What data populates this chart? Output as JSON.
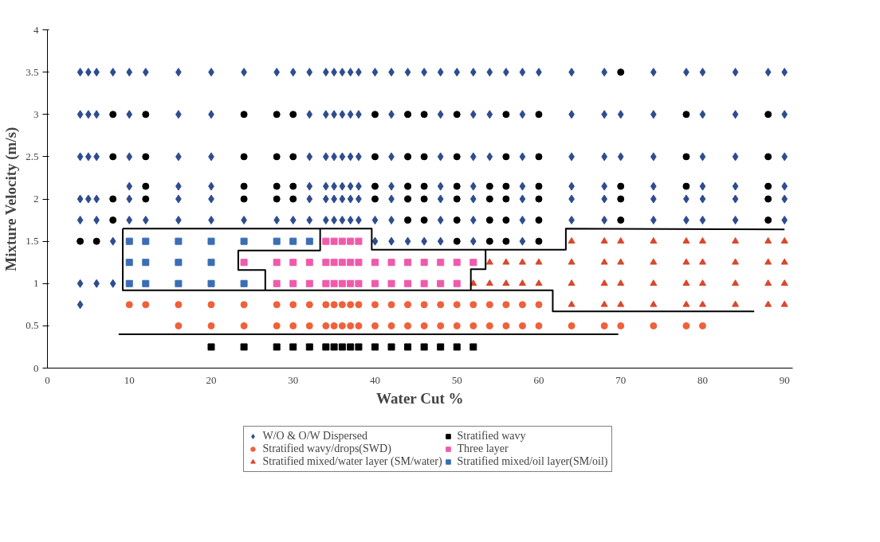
{
  "chart_data": {
    "type": "scatter",
    "xlabel": "Water Cut %",
    "ylabel": "Mixture Velocity (m/s)",
    "xlim": [
      0,
      91
    ],
    "ylim": [
      0,
      4
    ],
    "xticks": [
      0,
      10,
      20,
      30,
      40,
      50,
      60,
      70,
      80,
      90
    ],
    "yticks": [
      0,
      0.5,
      1,
      1.5,
      2,
      2.5,
      3,
      3.5,
      4
    ],
    "grid": false,
    "legend": "bottom",
    "series": [
      {
        "name": "W/O & O/W Dispersed",
        "color": "#2e4c8f",
        "marker": "diamond",
        "x": [
          4,
          5,
          6,
          8,
          10,
          12,
          16,
          20,
          24,
          28,
          30,
          32,
          34,
          35,
          36,
          37,
          38,
          40,
          42,
          44,
          46,
          48,
          50,
          52,
          54,
          56,
          58,
          60,
          64,
          68,
          74,
          78,
          80,
          84,
          88,
          90,
          4,
          5,
          6,
          10,
          16,
          20,
          32,
          34,
          35,
          36,
          37,
          38,
          42,
          48,
          52,
          54,
          58,
          64,
          68,
          70,
          74,
          80,
          84,
          90,
          4,
          5,
          6,
          10,
          16,
          20,
          32,
          34,
          35,
          36,
          37,
          38,
          42,
          48,
          52,
          54,
          58,
          64,
          68,
          70,
          74,
          80,
          84,
          90,
          10,
          16,
          20,
          32,
          34,
          35,
          36,
          37,
          38,
          42,
          48,
          52,
          58,
          64,
          68,
          74,
          80,
          84,
          90,
          4,
          5,
          6,
          10,
          16,
          20,
          32,
          34,
          35,
          36,
          37,
          38,
          42,
          48,
          52,
          58,
          64,
          68,
          74,
          78,
          80,
          84,
          90,
          4,
          6,
          10,
          12,
          16,
          20,
          24,
          28,
          30,
          32,
          34,
          35,
          36,
          37,
          38,
          40,
          42,
          48,
          52,
          58,
          64,
          68,
          74,
          78,
          80,
          84,
          90,
          8,
          40,
          42,
          44,
          46,
          48,
          52,
          58,
          4,
          6,
          8,
          4
        ],
        "values": [
          3.5,
          3.5,
          3.5,
          3.5,
          3.5,
          3.5,
          3.5,
          3.5,
          3.5,
          3.5,
          3.5,
          3.5,
          3.5,
          3.5,
          3.5,
          3.5,
          3.5,
          3.5,
          3.5,
          3.5,
          3.5,
          3.5,
          3.5,
          3.5,
          3.5,
          3.5,
          3.5,
          3.5,
          3.5,
          3.5,
          3.5,
          3.5,
          3.5,
          3.5,
          3.5,
          3.5,
          3,
          3,
          3,
          3,
          3,
          3,
          3,
          3,
          3,
          3,
          3,
          3,
          3,
          3,
          3,
          3,
          3,
          3,
          3,
          3,
          3,
          3,
          3,
          3,
          2.5,
          2.5,
          2.5,
          2.5,
          2.5,
          2.5,
          2.5,
          2.5,
          2.5,
          2.5,
          2.5,
          2.5,
          2.5,
          2.5,
          2.5,
          2.5,
          2.5,
          2.5,
          2.5,
          2.5,
          2.5,
          2.5,
          2.5,
          2.5,
          2.15,
          2.15,
          2.15,
          2.15,
          2.15,
          2.15,
          2.15,
          2.15,
          2.15,
          2.15,
          2.15,
          2.15,
          2.15,
          2.15,
          2.15,
          2.15,
          2.15,
          2.15,
          2.15,
          2,
          2,
          2,
          2,
          2,
          2,
          2,
          2,
          2,
          2,
          2,
          2,
          2,
          2,
          2,
          2,
          2,
          2,
          2,
          2,
          2,
          2,
          2,
          1.75,
          1.75,
          1.75,
          1.75,
          1.75,
          1.75,
          1.75,
          1.75,
          1.75,
          1.75,
          1.75,
          1.75,
          1.75,
          1.75,
          1.75,
          1.75,
          1.75,
          1.75,
          1.75,
          1.75,
          1.75,
          1.75,
          1.75,
          1.75,
          1.75,
          1.75,
          1.75,
          1.5,
          1.5,
          1.5,
          1.5,
          1.5,
          1.5,
          1.5,
          1.5,
          1,
          1,
          1,
          0.75
        ]
      },
      {
        "name": "Stratified wavy/drops(SWD)",
        "color": "#f0603a",
        "marker": "circle",
        "x": [
          10,
          12,
          16,
          20,
          24,
          28,
          30,
          32,
          34,
          35,
          36,
          37,
          38,
          40,
          42,
          44,
          46,
          48,
          50,
          52,
          54,
          56,
          58,
          60,
          16,
          20,
          24,
          28,
          30,
          32,
          34,
          35,
          36,
          37,
          38,
          40,
          42,
          44,
          46,
          48,
          50,
          52,
          54,
          56,
          58,
          60,
          64,
          68,
          70,
          74,
          78,
          80
        ],
        "values": [
          0.75,
          0.75,
          0.75,
          0.75,
          0.75,
          0.75,
          0.75,
          0.75,
          0.75,
          0.75,
          0.75,
          0.75,
          0.75,
          0.75,
          0.75,
          0.75,
          0.75,
          0.75,
          0.75,
          0.75,
          0.75,
          0.75,
          0.75,
          0.75,
          0.5,
          0.5,
          0.5,
          0.5,
          0.5,
          0.5,
          0.5,
          0.5,
          0.5,
          0.5,
          0.5,
          0.5,
          0.5,
          0.5,
          0.5,
          0.5,
          0.5,
          0.5,
          0.5,
          0.5,
          0.5,
          0.5,
          0.5,
          0.5,
          0.5,
          0.5,
          0.5,
          0.5
        ]
      },
      {
        "name": "Stratified mixed/water layer (SM/water)",
        "color": "#d9482c",
        "marker": "triangle",
        "x": [
          64,
          68,
          70,
          74,
          78,
          80,
          84,
          88,
          90,
          54,
          56,
          58,
          60,
          64,
          68,
          70,
          74,
          78,
          80,
          84,
          88,
          90,
          52,
          54,
          56,
          58,
          60,
          64,
          68,
          70,
          74,
          78,
          80,
          84,
          88,
          90,
          64,
          68,
          70,
          74,
          78,
          80,
          84,
          88,
          90
        ],
        "values": [
          1.5,
          1.5,
          1.5,
          1.5,
          1.5,
          1.5,
          1.5,
          1.5,
          1.5,
          1.25,
          1.25,
          1.25,
          1.25,
          1.25,
          1.25,
          1.25,
          1.25,
          1.25,
          1.25,
          1.25,
          1.25,
          1.25,
          1,
          1,
          1,
          1,
          1,
          1,
          1,
          1,
          1,
          1,
          1,
          1,
          1,
          1,
          0.75,
          0.75,
          0.75,
          0.75,
          0.75,
          0.75,
          0.75,
          0.75,
          0.75
        ]
      },
      {
        "name": "Stratified wavy",
        "color": "#000000",
        "marker": "square",
        "x": [
          20,
          24,
          28,
          30,
          32,
          34,
          35,
          36,
          37,
          38,
          40,
          42,
          44,
          46,
          48,
          50,
          52
        ],
        "values": [
          0.25,
          0.25,
          0.25,
          0.25,
          0.25,
          0.25,
          0.25,
          0.25,
          0.25,
          0.25,
          0.25,
          0.25,
          0.25,
          0.25,
          0.25,
          0.25,
          0.25
        ]
      },
      {
        "name": "Three layer",
        "color": "#f05aaa",
        "marker": "square",
        "x": [
          34,
          35,
          36,
          37,
          38,
          24,
          28,
          30,
          32,
          34,
          35,
          36,
          37,
          38,
          40,
          42,
          44,
          46,
          48,
          50,
          52,
          28,
          30,
          32,
          34,
          35,
          36,
          37,
          38,
          40,
          42,
          44,
          46,
          48,
          50
        ],
        "values": [
          1.5,
          1.5,
          1.5,
          1.5,
          1.5,
          1.25,
          1.25,
          1.25,
          1.25,
          1.25,
          1.25,
          1.25,
          1.25,
          1.25,
          1.25,
          1.25,
          1.25,
          1.25,
          1.25,
          1.25,
          1.25,
          1,
          1,
          1,
          1,
          1,
          1,
          1,
          1,
          1,
          1,
          1,
          1,
          1,
          1
        ]
      },
      {
        "name": "Stratified mixed/oil layer(SM/oil)",
        "color": "#3a6db5",
        "marker": "square",
        "x": [
          10,
          12,
          16,
          20,
          24,
          28,
          30,
          32,
          10,
          12,
          16,
          20,
          10,
          12,
          16,
          20,
          24
        ],
        "values": [
          1.5,
          1.5,
          1.5,
          1.5,
          1.5,
          1.5,
          1.5,
          1.5,
          1.25,
          1.25,
          1.25,
          1.25,
          1,
          1,
          1,
          1,
          1
        ]
      },
      {
        "color": "#000000",
        "marker": "circle",
        "x": [
          70,
          8,
          12,
          24,
          28,
          30,
          40,
          44,
          46,
          50,
          56,
          60,
          78,
          88,
          8,
          12,
          24,
          28,
          30,
          40,
          44,
          46,
          50,
          56,
          60,
          78,
          88,
          12,
          24,
          28,
          30,
          40,
          44,
          46,
          50,
          54,
          56,
          60,
          70,
          78,
          88,
          8,
          12,
          24,
          28,
          30,
          40,
          44,
          46,
          50,
          54,
          56,
          60,
          70,
          88,
          8,
          44,
          46,
          50,
          54,
          56,
          60,
          70,
          88,
          4,
          6,
          50,
          54,
          56,
          60
        ],
        "values": [
          3.5,
          3,
          3,
          3,
          3,
          3,
          3,
          3,
          3,
          3,
          3,
          3,
          3,
          3,
          2.5,
          2.5,
          2.5,
          2.5,
          2.5,
          2.5,
          2.5,
          2.5,
          2.5,
          2.5,
          2.5,
          2.5,
          2.5,
          2.15,
          2.15,
          2.15,
          2.15,
          2.15,
          2.15,
          2.15,
          2.15,
          2.15,
          2.15,
          2.15,
          2.15,
          2.15,
          2.15,
          2,
          2,
          2,
          2,
          2,
          2,
          2,
          2,
          2,
          2,
          2,
          2,
          2,
          2,
          1.75,
          1.75,
          1.75,
          1.75,
          1.75,
          1.75,
          1.75,
          1.75,
          1.75,
          1.5,
          1.5,
          1.5,
          1.5,
          1.5,
          1.5
        ]
      },
      {
        "type": "line",
        "color": "#000000",
        "marker": "none",
        "x": [
          9.2,
          39.6,
          39.6,
          63.3,
          63.3,
          90
        ],
        "values": [
          1.65,
          1.65,
          1.4,
          1.4,
          1.65,
          1.64
        ]
      },
      {
        "type": "line",
        "color": "#000000",
        "marker": "none",
        "x": [
          9.2,
          9.2,
          61.7,
          61.7,
          86.3
        ],
        "values": [
          1.65,
          0.92,
          0.92,
          0.67,
          0.67
        ]
      },
      {
        "type": "line",
        "color": "#000000",
        "marker": "none",
        "x": [
          33.3,
          33.3,
          23.3,
          23.3,
          26.6,
          26.6
        ],
        "values": [
          1.65,
          1.39,
          1.39,
          1.16,
          1.16,
          0.92
        ]
      },
      {
        "type": "line",
        "color": "#000000",
        "marker": "none",
        "x": [
          53.5,
          53.5,
          51.7,
          51.7
        ],
        "values": [
          1.4,
          1.17,
          1.17,
          0.92
        ]
      },
      {
        "type": "line",
        "color": "#000000",
        "marker": "none",
        "x": [
          8.7,
          69.7
        ],
        "values": [
          0.4,
          0.4
        ]
      }
    ]
  }
}
